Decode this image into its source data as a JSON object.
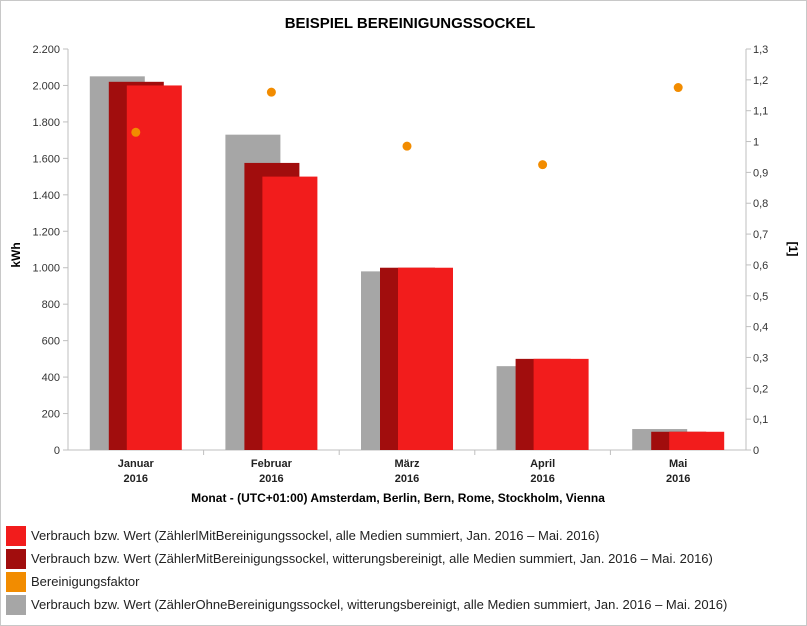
{
  "chart_data": {
    "type": "bar",
    "title": "BEISPIEL BEREINIGUNGSSOCKEL",
    "xlabel": "Monat - (UTC+01:00) Amsterdam, Berlin, Bern, Rome, Stockholm, Vienna",
    "ylabel": "kWh",
    "y2label": "[1]",
    "categories": [
      [
        "Januar",
        "2016"
      ],
      [
        "Februar",
        "2016"
      ],
      [
        "März",
        "2016"
      ],
      [
        "April",
        "2016"
      ],
      [
        "Mai",
        "2016"
      ]
    ],
    "ylim": [
      0,
      2200
    ],
    "yticks": [
      0,
      200,
      400,
      600,
      800,
      1000,
      1200,
      1400,
      1600,
      1800,
      2000,
      2200
    ],
    "ytick_labels": [
      "0",
      "200",
      "400",
      "600",
      "800",
      "1.000",
      "1.200",
      "1.400",
      "1.600",
      "1.800",
      "2.000",
      "2.200"
    ],
    "y2lim": [
      0,
      1.3
    ],
    "y2ticks": [
      0,
      0.1,
      0.2,
      0.3,
      0.4,
      0.5,
      0.6,
      0.7,
      0.8,
      0.9,
      1,
      1.1,
      1.2,
      1.3
    ],
    "y2tick_labels": [
      "0",
      "0,1",
      "0,2",
      "0,3",
      "0,4",
      "0,5",
      "0,6",
      "0,7",
      "0,8",
      "0,9",
      "1",
      "1,1",
      "1,2",
      "1,3"
    ],
    "grid": false,
    "legend_position": "bottom",
    "series": [
      {
        "name": "Verbrauch bzw. Wert (ZählerOhneBereinigungssockel, witterungsbereinigt, alle Medien summiert, Jan. 2016 – Mai. 2016)",
        "type": "bar",
        "axis": "left",
        "color": "#a6a6a6",
        "values": [
          2050,
          1730,
          980,
          460,
          115
        ]
      },
      {
        "name": "Verbrauch bzw. Wert (ZählerMitBereinigungssockel, witterungsbereinigt, alle Medien summiert, Jan. 2016 – Mai. 2016)",
        "type": "bar",
        "axis": "left",
        "color": "#a10d0d",
        "values": [
          2020,
          1575,
          1000,
          500,
          100
        ]
      },
      {
        "name": "Verbrauch bzw. Wert (ZählerlMitBereinigungssockel, alle Medien summiert, Jan. 2016 – Mai. 2016)",
        "type": "bar",
        "axis": "left",
        "color": "#f21c1c",
        "values": [
          2000,
          1500,
          1000,
          500,
          100
        ]
      },
      {
        "name": "Bereinigungsfaktor",
        "type": "scatter",
        "axis": "right",
        "color": "#f28c00",
        "values": [
          1.03,
          1.16,
          0.985,
          0.925,
          1.175
        ]
      }
    ],
    "legend": [
      {
        "label": "Verbrauch bzw. Wert (ZählerlMitBereinigungssockel, alle Medien summiert, Jan. 2016 – Mai. 2016)",
        "color": "#f21c1c"
      },
      {
        "label": "Verbrauch bzw. Wert (ZählerMitBereinigungssockel, witterungsbereinigt, alle Medien summiert, Jan. 2016 – Mai. 2016)",
        "color": "#a10d0d"
      },
      {
        "label": "Bereinigungsfaktor",
        "color": "#f28c00"
      },
      {
        "label": "Verbrauch bzw. Wert (ZählerOhneBereinigungssockel, witterungsbereinigt, alle Medien summiert, Jan. 2016 – Mai. 2016)",
        "color": "#a6a6a6"
      }
    ]
  }
}
